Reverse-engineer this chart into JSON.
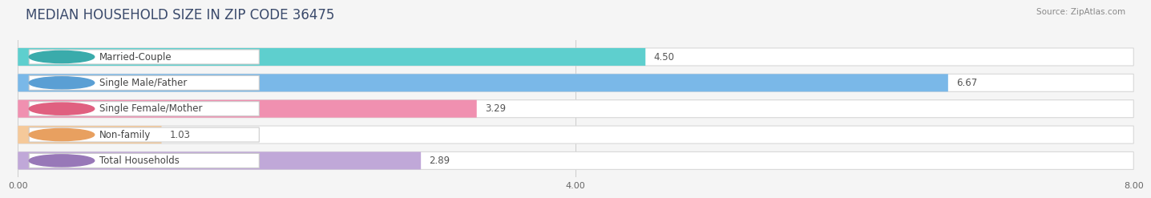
{
  "title": "MEDIAN HOUSEHOLD SIZE IN ZIP CODE 36475",
  "source": "Source: ZipAtlas.com",
  "categories": [
    "Married-Couple",
    "Single Male/Father",
    "Single Female/Mother",
    "Non-family",
    "Total Households"
  ],
  "values": [
    4.5,
    6.67,
    3.29,
    1.03,
    2.89
  ],
  "bar_colors": [
    "#5ecfce",
    "#7ab8e8",
    "#f090b0",
    "#f5c99a",
    "#c0a8d8"
  ],
  "label_dot_colors": [
    "#3aabab",
    "#5a9fd4",
    "#e06080",
    "#e8a060",
    "#9878b8"
  ],
  "background_color": "#f5f5f5",
  "bar_bg_color": "#ffffff",
  "xlim": [
    0,
    8.0
  ],
  "xticks": [
    0.0,
    4.0,
    8.0
  ],
  "xtick_labels": [
    "0.00",
    "4.00",
    "8.00"
  ],
  "title_fontsize": 12,
  "label_fontsize": 8.5,
  "value_fontsize": 8.5,
  "bar_height": 0.68,
  "bar_gap": 0.32
}
